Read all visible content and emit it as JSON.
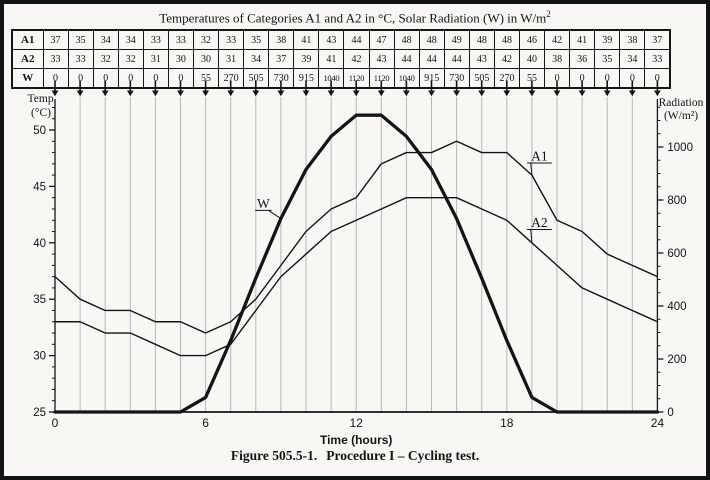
{
  "figure": {
    "title_text": "Temperatures of Categories A1 and A2 in °C, Solar Radiation (W) in W/m",
    "title_sup": "2",
    "caption_label": "Figure 505.5-1.",
    "caption_text": "Procedure I – Cycling test."
  },
  "table": {
    "rows": [
      {
        "label": "A1",
        "values": [
          37,
          35,
          34,
          34,
          33,
          33,
          32,
          33,
          35,
          38,
          41,
          43,
          44,
          47,
          48,
          48,
          49,
          48,
          48,
          46,
          42,
          41,
          39,
          38,
          37
        ]
      },
      {
        "label": "A2",
        "values": [
          33,
          33,
          32,
          32,
          31,
          30,
          30,
          31,
          34,
          37,
          39,
          41,
          42,
          43,
          44,
          44,
          44,
          43,
          42,
          40,
          38,
          36,
          35,
          34,
          33
        ]
      },
      {
        "label": "W",
        "values": [
          0,
          0,
          0,
          0,
          0,
          0,
          55,
          270,
          505,
          730,
          915,
          1040,
          1120,
          1120,
          1040,
          915,
          730,
          505,
          270,
          55,
          0,
          0,
          0,
          0,
          0
        ]
      }
    ]
  },
  "chart_data": {
    "type": "line",
    "x": [
      0,
      1,
      2,
      3,
      4,
      5,
      6,
      7,
      8,
      9,
      10,
      11,
      12,
      13,
      14,
      15,
      16,
      17,
      18,
      19,
      20,
      21,
      22,
      23,
      24
    ],
    "series": [
      {
        "name": "A1",
        "axis": "temperature",
        "values": [
          37,
          35,
          34,
          34,
          33,
          33,
          32,
          33,
          35,
          38,
          41,
          43,
          44,
          47,
          48,
          48,
          49,
          48,
          48,
          46,
          42,
          41,
          39,
          38,
          37
        ],
        "stroke": "thin"
      },
      {
        "name": "A2",
        "axis": "temperature",
        "values": [
          33,
          33,
          32,
          32,
          31,
          30,
          30,
          31,
          34,
          37,
          39,
          41,
          42,
          43,
          44,
          44,
          44,
          43,
          42,
          40,
          38,
          36,
          35,
          34,
          33
        ],
        "stroke": "thin"
      },
      {
        "name": "W",
        "axis": "radiation",
        "values": [
          0,
          0,
          0,
          0,
          0,
          0,
          55,
          270,
          505,
          730,
          915,
          1040,
          1120,
          1120,
          1040,
          915,
          730,
          505,
          270,
          55,
          0,
          0,
          0,
          0,
          0
        ],
        "stroke": "thick"
      }
    ],
    "xlabel": "Time (hours)",
    "x_ticks": [
      0,
      6,
      12,
      18,
      24
    ],
    "x_range": [
      0,
      24
    ],
    "left_axis": {
      "label": [
        "Temp.",
        "(°C)"
      ],
      "ticks": [
        25,
        30,
        35,
        40,
        45,
        50
      ],
      "minor_step": 1,
      "range": [
        25,
        52.5
      ]
    },
    "right_axis": {
      "label": [
        "Radiation",
        "(W/m²)"
      ],
      "ticks": [
        0,
        200,
        400,
        600,
        800,
        1000
      ],
      "minor_step": 50,
      "range": [
        0,
        1180
      ]
    },
    "grid": {
      "vertical_hourly": true,
      "horizontal": false
    },
    "column_arrows": true,
    "annotations": [
      {
        "text": "W",
        "label_hour": 8.3,
        "label_temp": 43.5,
        "target_series": "W",
        "target_hour": 9
      },
      {
        "text": "A1",
        "label_hour": 19.3,
        "label_temp": 47.7,
        "target_series": "A1",
        "target_hour": 19
      },
      {
        "text": "A2",
        "label_hour": 19.3,
        "label_temp": 41.8,
        "target_series": "A2",
        "target_hour": 19
      }
    ]
  }
}
